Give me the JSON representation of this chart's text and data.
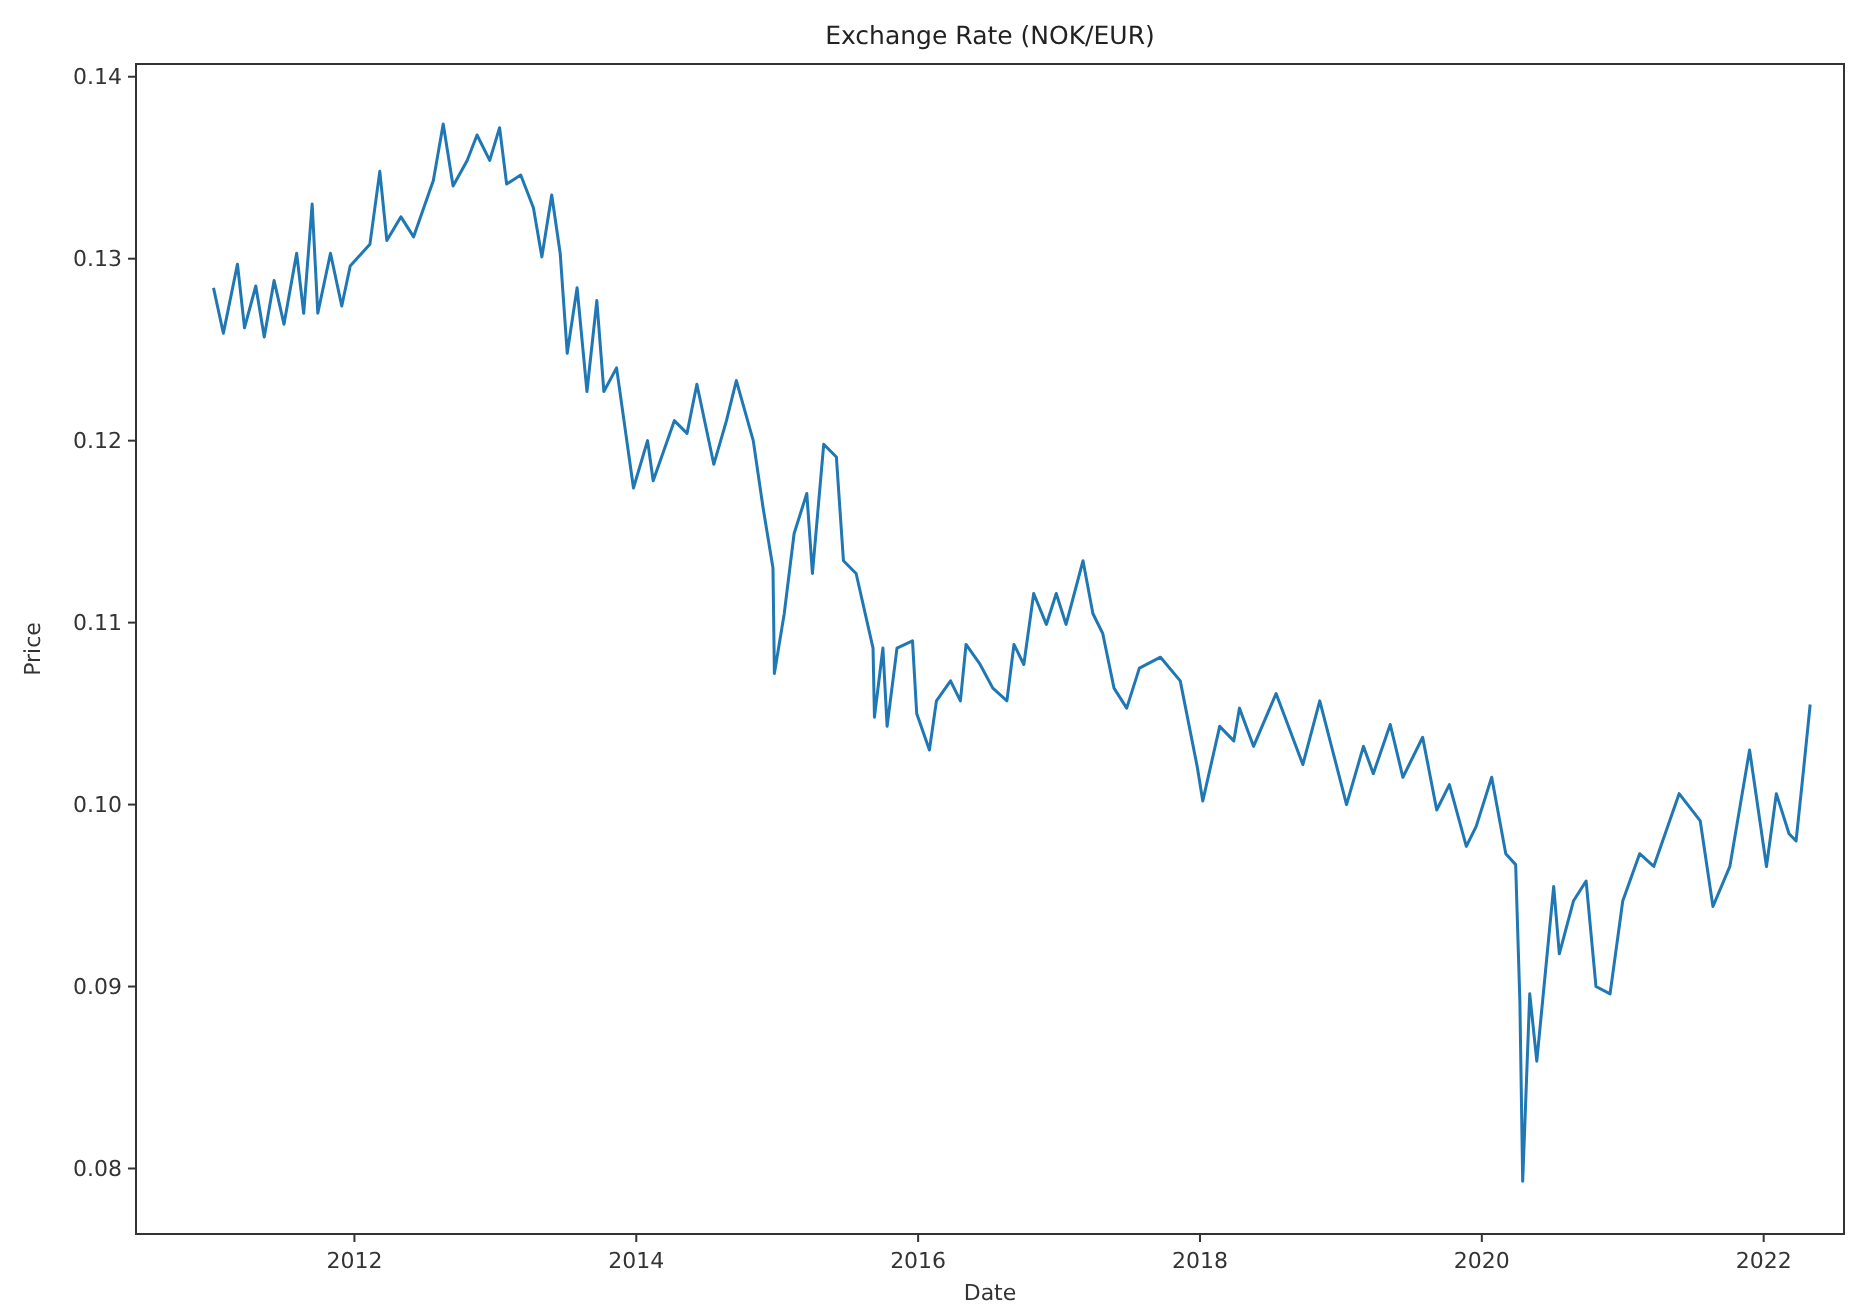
{
  "chart_data": {
    "type": "line",
    "title": "Exchange Rate (NOK/EUR)",
    "xlabel": "Date",
    "ylabel": "Price",
    "x": [
      2011.0,
      2011.07,
      2011.17,
      2011.22,
      2011.3,
      2011.36,
      2011.43,
      2011.5,
      2011.59,
      2011.64,
      2011.7,
      2011.74,
      2011.83,
      2011.91,
      2011.97,
      2012.11,
      2012.18,
      2012.23,
      2012.33,
      2012.42,
      2012.51,
      2012.56,
      2012.63,
      2012.7,
      2012.8,
      2012.87,
      2012.96,
      2013.03,
      2013.08,
      2013.18,
      2013.27,
      2013.33,
      2013.4,
      2013.46,
      2013.51,
      2013.58,
      2013.65,
      2013.72,
      2013.77,
      2013.86,
      2013.98,
      2014.08,
      2014.12,
      2014.27,
      2014.36,
      2014.43,
      2014.55,
      2014.64,
      2014.71,
      2014.83,
      2014.9,
      2014.97,
      2014.98,
      2015.05,
      2015.12,
      2015.21,
      2015.25,
      2015.33,
      2015.42,
      2015.47,
      2015.56,
      2015.68,
      2015.69,
      2015.75,
      2015.78,
      2015.85,
      2015.96,
      2015.99,
      2016.08,
      2016.13,
      2016.23,
      2016.3,
      2016.34,
      2016.44,
      2016.53,
      2016.63,
      2016.68,
      2016.75,
      2016.82,
      2016.91,
      2016.98,
      2017.05,
      2017.17,
      2017.24,
      2017.31,
      2017.39,
      2017.48,
      2017.57,
      2017.72,
      2017.86,
      2017.98,
      2018.02,
      2018.14,
      2018.24,
      2018.28,
      2018.38,
      2018.54,
      2018.73,
      2018.85,
      2019.04,
      2019.16,
      2019.23,
      2019.35,
      2019.44,
      2019.58,
      2019.68,
      2019.77,
      2019.89,
      2019.96,
      2020.07,
      2020.17,
      2020.24,
      2020.27,
      2020.29,
      2020.34,
      2020.39,
      2020.51,
      2020.55,
      2020.65,
      2020.74,
      2020.81,
      2020.91,
      2021.0,
      2021.12,
      2021.22,
      2021.4,
      2021.55,
      2021.64,
      2021.76,
      2021.9,
      2022.02,
      2022.09,
      2022.18,
      2022.23,
      2022.28,
      2022.33
    ],
    "series": [
      {
        "color": "#1f77b4",
        "values": [
          0.1284,
          0.1259,
          0.1297,
          0.1262,
          0.1285,
          0.1257,
          0.1288,
          0.1264,
          0.1303,
          0.127,
          0.133,
          0.127,
          0.1303,
          0.1274,
          0.1296,
          0.1308,
          0.1348,
          0.131,
          0.1323,
          0.1312,
          0.1332,
          0.1343,
          0.1374,
          0.134,
          0.1354,
          0.1368,
          0.1354,
          0.1372,
          0.1341,
          0.1346,
          0.1328,
          0.1301,
          0.1335,
          0.1303,
          0.1248,
          0.1284,
          0.1227,
          0.1277,
          0.1227,
          0.124,
          0.1174,
          0.12,
          0.1178,
          0.1211,
          0.1204,
          0.1231,
          0.1187,
          0.1211,
          0.1233,
          0.12,
          0.1163,
          0.113,
          0.1072,
          0.1105,
          0.1149,
          0.1171,
          0.1127,
          0.1198,
          0.1191,
          0.1134,
          0.1127,
          0.1086,
          0.1048,
          0.1086,
          0.1043,
          0.1086,
          0.109,
          0.105,
          0.103,
          0.1057,
          0.1068,
          0.1057,
          0.1088,
          0.1077,
          0.1064,
          0.1057,
          0.1088,
          0.1077,
          0.1116,
          0.1099,
          0.1116,
          0.1099,
          0.1134,
          0.1105,
          0.1094,
          0.1064,
          0.1053,
          0.1075,
          0.1081,
          0.1068,
          0.1021,
          0.1002,
          0.1043,
          0.1035,
          0.1053,
          0.1032,
          0.1061,
          0.1022,
          0.1057,
          0.1,
          0.1032,
          0.1017,
          0.1044,
          0.1015,
          0.1037,
          0.0997,
          0.1011,
          0.0977,
          0.0988,
          0.1015,
          0.0973,
          0.0967,
          0.0892,
          0.0793,
          0.0896,
          0.0859,
          0.0955,
          0.0918,
          0.0947,
          0.0958,
          0.09,
          0.0896,
          0.0947,
          0.0973,
          0.0966,
          0.1006,
          0.0991,
          0.0944,
          0.0966,
          0.103,
          0.0966,
          0.1006,
          0.0984,
          0.098,
          0.1017,
          0.1055
        ]
      }
    ],
    "xlim": [
      2010.45,
      2022.57
    ],
    "ylim": [
      0.0764,
      0.1407
    ],
    "xticks": [
      2012,
      2014,
      2016,
      2018,
      2020,
      2022
    ],
    "yticks": [
      {
        "value": 0.08,
        "label": "0.08"
      },
      {
        "value": 0.09,
        "label": "0.09"
      },
      {
        "value": 0.1,
        "label": "0.10"
      },
      {
        "value": 0.11,
        "label": "0.11"
      },
      {
        "value": 0.12,
        "label": "0.12"
      },
      {
        "value": 0.13,
        "label": "0.13"
      },
      {
        "value": 0.14,
        "label": "0.14"
      }
    ],
    "grid": false,
    "line_style": "solid"
  }
}
